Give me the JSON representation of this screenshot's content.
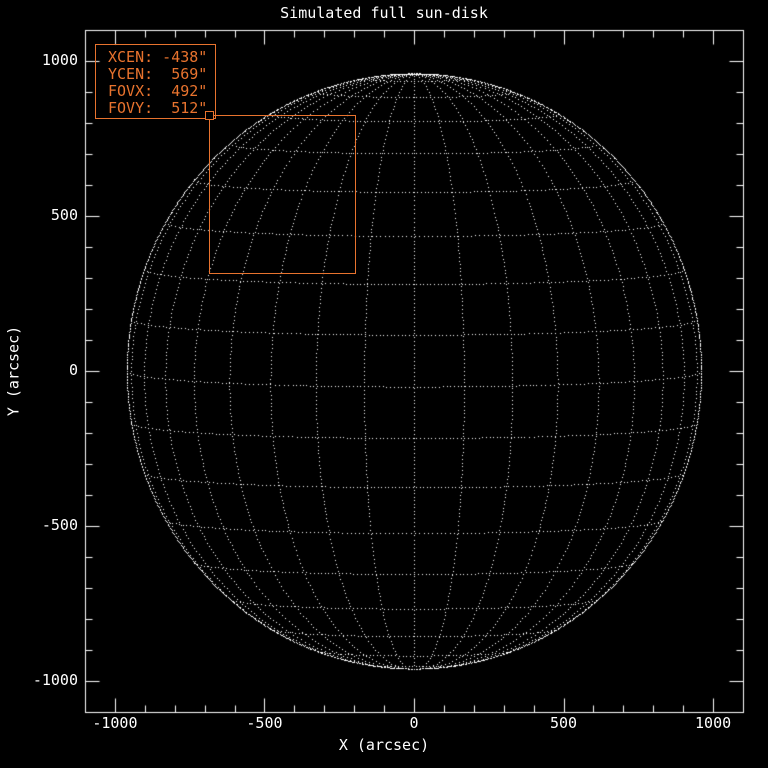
{
  "title": "Simulated full sun-disk",
  "axes": {
    "x": {
      "label": "X (arcsec)",
      "tick_labels": [
        "-1000",
        "-500",
        "0",
        "500",
        "1000"
      ],
      "tick_values": [
        -1000,
        -500,
        0,
        500,
        1000
      ],
      "minor_step": 100,
      "range": [
        -1100,
        1100
      ]
    },
    "y": {
      "label": "Y (arcsec)",
      "tick_labels": [
        "1000",
        "500",
        "0",
        "-500",
        "-1000"
      ],
      "tick_values": [
        1000,
        500,
        0,
        -500,
        -1000
      ],
      "minor_step": 100,
      "range": [
        -1100,
        1100
      ]
    }
  },
  "legend": {
    "lines": [
      "XCEN: -438\"",
      "YCEN:  569\"",
      "FOVX:  492\"",
      "FOVY:  512\""
    ]
  },
  "chart_data": {
    "type": "scatter",
    "title": "Simulated full sun-disk",
    "xlabel": "X (arcsec)",
    "ylabel": "Y (arcsec)",
    "xlim": [
      -1100,
      1100
    ],
    "ylim": [
      -1100,
      1100
    ],
    "grid": false,
    "sun_disk": {
      "radius_arcsec": 960,
      "grid_spacing_deg": 10,
      "b0_tilt_deg": 3,
      "style": "dotted-wireframe-orthographic",
      "limb": "dense-dotted-circle"
    },
    "fov_overlay": {
      "xcen_arcsec": -438,
      "ycen_arcsec": 569,
      "fovx_arcsec": 492,
      "fovy_arcsec": 512
    }
  },
  "colors": {
    "background": "#000000",
    "foreground": "#ffffff",
    "accent": "#e8732e"
  }
}
